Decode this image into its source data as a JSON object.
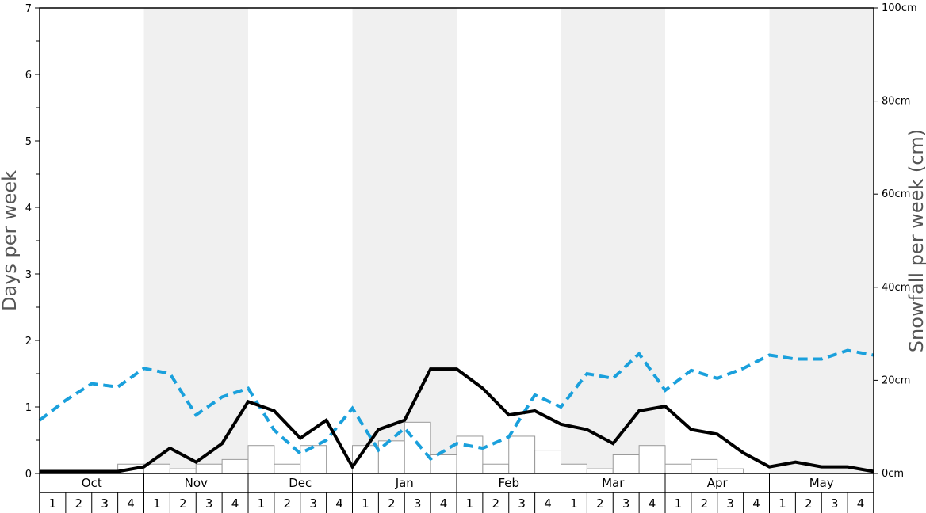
{
  "chart_data": {
    "type": "bar",
    "ylabel_left": "Days per week",
    "ylabel_right": "Snowfall per week (cm)",
    "ylim_left": [
      0,
      7
    ],
    "ylim_right": [
      0,
      100
    ],
    "left_ticks": [
      "0",
      "1",
      "2",
      "3",
      "4",
      "5",
      "6",
      "7"
    ],
    "right_ticks": [
      "0cm",
      "20cm",
      "40cm",
      "60cm",
      "80cm",
      "100cm"
    ],
    "months": [
      "Oct",
      "Nov",
      "Dec",
      "Jan",
      "Feb",
      "Mar",
      "Apr",
      "May"
    ],
    "weeks": [
      "1",
      "2",
      "3",
      "4"
    ],
    "colors": {
      "dashed": "#1aa0dc",
      "solid": "#000000",
      "bars": "#ffffff",
      "bar_edge": "#999999",
      "band": "#f0f0f0"
    },
    "series": [
      {
        "kind": "bars",
        "axis": "right",
        "values": [
          0,
          0,
          0,
          2,
          2,
          1,
          2,
          3,
          6,
          2,
          6,
          0,
          6,
          7,
          11,
          4,
          8,
          2,
          8,
          5,
          2,
          1,
          4,
          6,
          2,
          3,
          1,
          0,
          0,
          0,
          0,
          0
        ]
      },
      {
        "kind": "line",
        "style": "dashed",
        "axis": "left",
        "values": [
          0.8,
          1.1,
          1.35,
          1.3,
          1.58,
          1.5,
          0.88,
          1.15,
          1.28,
          0.65,
          0.3,
          0.5,
          0.98,
          0.35,
          0.68,
          0.22,
          0.45,
          0.38,
          0.55,
          1.18,
          1.0,
          1.5,
          1.43,
          1.8,
          1.25,
          1.55,
          1.43,
          1.58,
          1.78,
          1.72,
          1.72,
          1.85,
          1.78
        ]
      },
      {
        "kind": "line",
        "style": "solid",
        "axis": "left",
        "values": [
          0.03,
          0.03,
          0.03,
          0.03,
          0.1,
          0.38,
          0.17,
          0.45,
          1.08,
          0.94,
          0.53,
          0.8,
          0.1,
          0.66,
          0.8,
          1.57,
          1.57,
          1.28,
          0.88,
          0.94,
          0.74,
          0.66,
          0.45,
          0.94,
          1.01,
          0.66,
          0.59,
          0.31,
          0.1,
          0.17,
          0.1,
          0.1,
          0.03
        ]
      }
    ]
  }
}
